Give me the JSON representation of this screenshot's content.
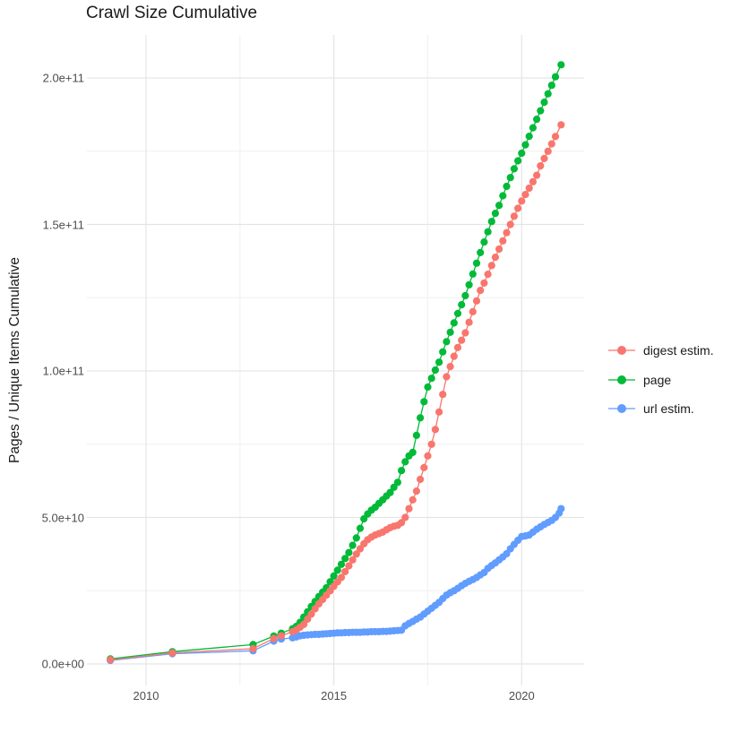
{
  "title": {
    "text": "Crawl Size Cumulative"
  },
  "y_axis": {
    "title": "Pages / Unique Items Cumulative"
  },
  "colors": {
    "digest_estim": "#F8766D",
    "page": "#00BA38",
    "url_estim": "#619CFF",
    "grid_major": "#E5E5E5",
    "grid_minor": "#F0F0F0",
    "tick_text": "#4d4d4d",
    "title_text": "#1a1a1a"
  },
  "legend": {
    "items": [
      {
        "label": "digest estim.",
        "series": "digest estim."
      },
      {
        "label": "page",
        "series": "page"
      },
      {
        "label": "url estim.",
        "series": "url estim."
      }
    ]
  },
  "chart_data": {
    "type": "scatter",
    "style": "points-with-line",
    "title": "Crawl Size Cumulative",
    "xlabel": "",
    "ylabel": "Pages / Unique Items Cumulative",
    "x_unit": "year (decimal)",
    "y_unit": "count x 1e9 (billions of pages / unique items)",
    "x_range": [
      2008.42,
      2021.67
    ],
    "y_range_e9": [
      -7,
      215
    ],
    "grid": true,
    "legend_position": "right",
    "x_ticks": [
      {
        "value": 2010,
        "label": "2010"
      },
      {
        "value": 2015,
        "label": "2015"
      },
      {
        "value": 2020,
        "label": "2020"
      }
    ],
    "x_minor_ticks": [
      2012.5,
      2017.5
    ],
    "y_ticks": [
      {
        "value": 0,
        "label": "0.0e+00"
      },
      {
        "value": 50,
        "label": "5.0e+10"
      },
      {
        "value": 100,
        "label": "1.0e+11"
      },
      {
        "value": 150,
        "label": "1.5e+11"
      },
      {
        "value": 200,
        "label": "2.0e+11"
      }
    ],
    "y_minor_ticks": [
      25,
      75,
      125,
      175
    ],
    "draw_order": [
      "page",
      "url estim.",
      "digest estim."
    ],
    "series": [
      {
        "name": "digest estim.",
        "color": "#F8766D",
        "points": [
          [
            2009.05,
            1.4
          ],
          [
            2010.7,
            3.8
          ],
          [
            2012.85,
            5.2
          ],
          [
            2013.4,
            8.7
          ],
          [
            2013.6,
            9.6
          ],
          [
            2013.9,
            11.0
          ],
          [
            2014.0,
            11.6
          ],
          [
            2014.1,
            12.5
          ],
          [
            2014.2,
            13.5
          ],
          [
            2014.3,
            15.3
          ],
          [
            2014.4,
            17.0
          ],
          [
            2014.5,
            18.8
          ],
          [
            2014.6,
            20.5
          ],
          [
            2014.7,
            22.0
          ],
          [
            2014.8,
            23.5
          ],
          [
            2014.9,
            25.0
          ],
          [
            2015.0,
            26.5
          ],
          [
            2015.1,
            28.0
          ],
          [
            2015.2,
            29.5
          ],
          [
            2015.3,
            31.5
          ],
          [
            2015.4,
            33.5
          ],
          [
            2015.5,
            35.5
          ],
          [
            2015.6,
            37.5
          ],
          [
            2015.7,
            39.3
          ],
          [
            2015.8,
            41.0
          ],
          [
            2015.9,
            42.4
          ],
          [
            2016.0,
            43.3
          ],
          [
            2016.1,
            44.0
          ],
          [
            2016.2,
            44.5
          ],
          [
            2016.3,
            45.0
          ],
          [
            2016.4,
            45.8
          ],
          [
            2016.5,
            46.5
          ],
          [
            2016.6,
            47.0
          ],
          [
            2016.7,
            47.3
          ],
          [
            2016.8,
            48.2
          ],
          [
            2016.9,
            50.0
          ],
          [
            2017.0,
            53.0
          ],
          [
            2017.1,
            56.0
          ],
          [
            2017.2,
            59.0
          ],
          [
            2017.3,
            63.0
          ],
          [
            2017.4,
            67.0
          ],
          [
            2017.5,
            71.0
          ],
          [
            2017.6,
            75.0
          ],
          [
            2017.7,
            80.0
          ],
          [
            2017.8,
            86.0
          ],
          [
            2017.9,
            92.0
          ],
          [
            2018.0,
            98.0
          ],
          [
            2018.1,
            101.5
          ],
          [
            2018.2,
            105.0
          ],
          [
            2018.3,
            108.0
          ],
          [
            2018.4,
            110.5
          ],
          [
            2018.5,
            113.0
          ],
          [
            2018.6,
            116.6
          ],
          [
            2018.7,
            120.2
          ],
          [
            2018.8,
            123.9
          ],
          [
            2018.9,
            127.5
          ],
          [
            2019.0,
            130.0
          ],
          [
            2019.1,
            133.0
          ],
          [
            2019.2,
            136.0
          ],
          [
            2019.3,
            138.8
          ],
          [
            2019.4,
            141.6
          ],
          [
            2019.5,
            144.4
          ],
          [
            2019.6,
            147.2
          ],
          [
            2019.7,
            150.0
          ],
          [
            2019.8,
            152.8
          ],
          [
            2019.9,
            155.5
          ],
          [
            2020.0,
            158.0
          ],
          [
            2020.1,
            160.2
          ],
          [
            2020.2,
            162.4
          ],
          [
            2020.3,
            164.6
          ],
          [
            2020.4,
            166.8
          ],
          [
            2020.5,
            170.0
          ],
          [
            2020.6,
            172.5
          ],
          [
            2020.7,
            175.0
          ],
          [
            2020.8,
            177.5
          ],
          [
            2020.9,
            180.0
          ],
          [
            2021.05,
            184.0
          ]
        ]
      },
      {
        "name": "page",
        "color": "#00BA38",
        "points": [
          [
            2009.05,
            1.7
          ],
          [
            2010.7,
            4.2
          ],
          [
            2012.85,
            6.6
          ],
          [
            2013.4,
            9.5
          ],
          [
            2013.6,
            10.5
          ],
          [
            2013.9,
            12.0
          ],
          [
            2014.0,
            12.8
          ],
          [
            2014.1,
            14.2
          ],
          [
            2014.2,
            16.0
          ],
          [
            2014.3,
            17.8
          ],
          [
            2014.4,
            19.6
          ],
          [
            2014.5,
            21.3
          ],
          [
            2014.6,
            23.0
          ],
          [
            2014.7,
            24.5
          ],
          [
            2014.8,
            26.0
          ],
          [
            2014.9,
            28.0
          ],
          [
            2015.0,
            30.0
          ],
          [
            2015.1,
            32.0
          ],
          [
            2015.2,
            34.0
          ],
          [
            2015.3,
            36.0
          ],
          [
            2015.4,
            38.0
          ],
          [
            2015.5,
            40.5
          ],
          [
            2015.6,
            43.0
          ],
          [
            2015.7,
            46.3
          ],
          [
            2015.8,
            49.5
          ],
          [
            2015.9,
            51.2
          ],
          [
            2016.0,
            52.5
          ],
          [
            2016.1,
            53.5
          ],
          [
            2016.2,
            54.8
          ],
          [
            2016.3,
            56.0
          ],
          [
            2016.4,
            57.3
          ],
          [
            2016.5,
            58.5
          ],
          [
            2016.6,
            60.3
          ],
          [
            2016.7,
            62.0
          ],
          [
            2016.8,
            66.0
          ],
          [
            2016.9,
            69.0
          ],
          [
            2017.0,
            71.0
          ],
          [
            2017.1,
            72.2
          ],
          [
            2017.2,
            78.0
          ],
          [
            2017.3,
            84.0
          ],
          [
            2017.4,
            89.5
          ],
          [
            2017.5,
            94.5
          ],
          [
            2017.6,
            97.5
          ],
          [
            2017.7,
            100.3
          ],
          [
            2017.8,
            103.0
          ],
          [
            2017.9,
            106.5
          ],
          [
            2018.0,
            110.0
          ],
          [
            2018.1,
            113.2
          ],
          [
            2018.2,
            116.4
          ],
          [
            2018.3,
            119.6
          ],
          [
            2018.4,
            122.6
          ],
          [
            2018.5,
            125.7
          ],
          [
            2018.6,
            129.4
          ],
          [
            2018.7,
            133.1
          ],
          [
            2018.8,
            136.8
          ],
          [
            2018.9,
            140.4
          ],
          [
            2019.0,
            144.0
          ],
          [
            2019.1,
            147.5
          ],
          [
            2019.2,
            151.0
          ],
          [
            2019.3,
            153.8
          ],
          [
            2019.4,
            156.5
          ],
          [
            2019.5,
            159.8
          ],
          [
            2019.6,
            163.0
          ],
          [
            2019.7,
            166.0
          ],
          [
            2019.8,
            169.0
          ],
          [
            2019.9,
            171.7
          ],
          [
            2020.0,
            174.3
          ],
          [
            2020.1,
            177.2
          ],
          [
            2020.2,
            180.1
          ],
          [
            2020.3,
            183.0
          ],
          [
            2020.4,
            185.9
          ],
          [
            2020.5,
            188.8
          ],
          [
            2020.6,
            191.7
          ],
          [
            2020.7,
            194.6
          ],
          [
            2020.8,
            197.5
          ],
          [
            2020.9,
            200.4
          ],
          [
            2021.05,
            204.5
          ]
        ]
      },
      {
        "name": "url estim.",
        "color": "#619CFF",
        "points": [
          [
            2009.05,
            1.2
          ],
          [
            2010.7,
            3.5
          ],
          [
            2012.85,
            4.5
          ],
          [
            2013.4,
            7.8
          ],
          [
            2013.6,
            8.5
          ],
          [
            2013.9,
            8.9
          ],
          [
            2014.0,
            9.2
          ],
          [
            2014.1,
            9.6
          ],
          [
            2014.2,
            9.8
          ],
          [
            2014.3,
            9.9
          ],
          [
            2014.4,
            10.0
          ],
          [
            2014.5,
            10.1
          ],
          [
            2014.6,
            10.1
          ],
          [
            2014.7,
            10.2
          ],
          [
            2014.8,
            10.3
          ],
          [
            2014.9,
            10.4
          ],
          [
            2015.0,
            10.5
          ],
          [
            2015.1,
            10.6
          ],
          [
            2015.2,
            10.6
          ],
          [
            2015.3,
            10.7
          ],
          [
            2015.4,
            10.7
          ],
          [
            2015.5,
            10.8
          ],
          [
            2015.6,
            10.8
          ],
          [
            2015.7,
            10.8
          ],
          [
            2015.8,
            10.9
          ],
          [
            2015.9,
            10.9
          ],
          [
            2016.0,
            11.0
          ],
          [
            2016.1,
            11.0
          ],
          [
            2016.2,
            11.0
          ],
          [
            2016.3,
            11.1
          ],
          [
            2016.4,
            11.1
          ],
          [
            2016.5,
            11.2
          ],
          [
            2016.6,
            11.3
          ],
          [
            2016.7,
            11.4
          ],
          [
            2016.8,
            11.5
          ],
          [
            2016.9,
            13.0
          ],
          [
            2017.0,
            13.8
          ],
          [
            2017.1,
            14.5
          ],
          [
            2017.2,
            15.3
          ],
          [
            2017.3,
            16.0
          ],
          [
            2017.4,
            17.0
          ],
          [
            2017.5,
            18.0
          ],
          [
            2017.6,
            19.0
          ],
          [
            2017.7,
            20.0
          ],
          [
            2017.8,
            21.0
          ],
          [
            2017.9,
            22.3
          ],
          [
            2018.0,
            23.5
          ],
          [
            2018.1,
            24.3
          ],
          [
            2018.2,
            25.0
          ],
          [
            2018.3,
            25.8
          ],
          [
            2018.4,
            26.7
          ],
          [
            2018.5,
            27.5
          ],
          [
            2018.6,
            28.2
          ],
          [
            2018.7,
            28.8
          ],
          [
            2018.8,
            29.5
          ],
          [
            2018.9,
            30.4
          ],
          [
            2019.0,
            31.2
          ],
          [
            2019.1,
            32.6
          ],
          [
            2019.2,
            33.6
          ],
          [
            2019.3,
            34.5
          ],
          [
            2019.4,
            35.5
          ],
          [
            2019.5,
            36.5
          ],
          [
            2019.6,
            37.6
          ],
          [
            2019.7,
            39.3
          ],
          [
            2019.8,
            40.8
          ],
          [
            2019.9,
            42.2
          ],
          [
            2020.0,
            43.5
          ],
          [
            2020.1,
            43.7
          ],
          [
            2020.2,
            44.0
          ],
          [
            2020.3,
            45.0
          ],
          [
            2020.4,
            46.0
          ],
          [
            2020.5,
            46.8
          ],
          [
            2020.6,
            47.6
          ],
          [
            2020.7,
            48.3
          ],
          [
            2020.8,
            49.0
          ],
          [
            2020.9,
            50.0
          ],
          [
            2021.0,
            51.5
          ],
          [
            2021.05,
            53.0
          ]
        ]
      }
    ]
  }
}
